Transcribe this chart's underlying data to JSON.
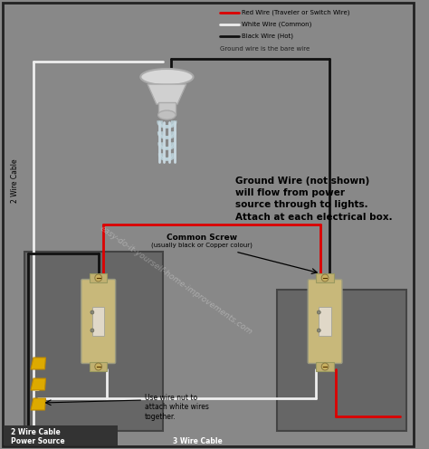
{
  "bg_color": "#888888",
  "legend": {
    "red_label": "Red Wire (Traveler or Switch Wire)",
    "white_label": "White Wire (Common)",
    "black_label": "Black Wire (Hot)",
    "ground_label": "Ground wire is the bare wire"
  },
  "note_text": "Ground Wire (not shown)\nwill flow from power\nsource through to lights.\nAttach at each electrical box.",
  "label_2wire_side": "2 Wire Cable",
  "label_2wire_bottom": "2 Wire Cable",
  "label_power_source": "Power Source",
  "label_3wire_bottom": "3 Wire Cable",
  "label_common_screw": "Common Screw",
  "label_common_screw2": "(usually black or Copper colour)",
  "label_wire_nut": "Use wire nut to\nattach white wires\ntogether.",
  "watermark": "easy-do-it-yourself-home-improvements.com",
  "red_wire": "#dd0000",
  "white_wire": "#eeeeee",
  "black_wire": "#111111",
  "switch_color": "#c8b87a",
  "wire_nut_color": "#ddaa00",
  "figsize": [
    4.74,
    4.96
  ],
  "dpi": 100
}
